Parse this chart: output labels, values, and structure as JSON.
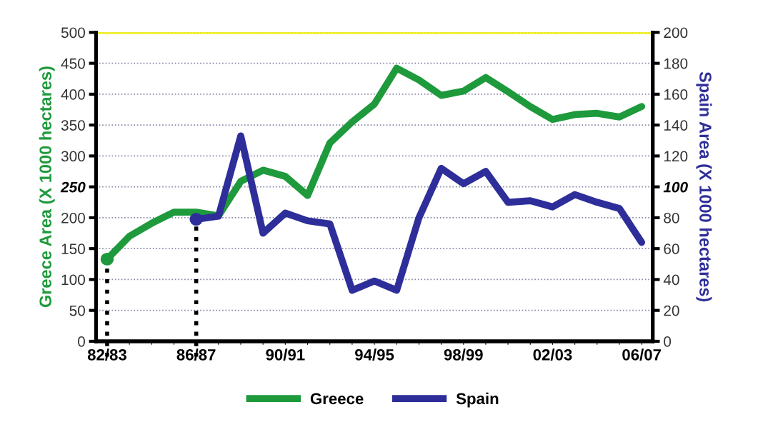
{
  "chart_data": {
    "type": "line",
    "categories": [
      "82/83",
      null,
      null,
      null,
      "86/87",
      null,
      null,
      null,
      "90/91",
      null,
      null,
      null,
      "94/95",
      null,
      null,
      null,
      "98/99",
      null,
      null,
      null,
      "02/03",
      null,
      null,
      null,
      "06/07"
    ],
    "series": [
      {
        "name": "Greece",
        "color": "#1e9a3c",
        "values": [
          133,
          170,
          191,
          209,
          209,
          203,
          259,
          277,
          267,
          236,
          321,
          355,
          384,
          442,
          423,
          398,
          405,
          427,
          404,
          380,
          359,
          367,
          369,
          363,
          380
        ]
      },
      {
        "name": "Spain",
        "color": "#2e2e9a",
        "axis": "y2",
        "values": [
          null,
          null,
          null,
          null,
          79,
          81,
          133,
          70,
          83,
          78,
          76,
          33,
          39,
          33,
          80,
          112,
          102,
          110,
          90,
          91,
          87,
          95,
          90,
          86,
          64
        ]
      }
    ],
    "ylabel": "Greece Area (X 1000 hectares)",
    "y2label": "Spain Area (X 1000 hectares)",
    "ylim": [
      0,
      500
    ],
    "yticks": [
      0,
      50,
      100,
      150,
      200,
      {
        "value": 250,
        "label": "250"
      },
      300,
      350,
      400,
      450,
      500
    ],
    "y2lim": [
      0,
      200
    ],
    "y2ticks": [
      0,
      20,
      40,
      60,
      80,
      {
        "value": 100,
        "label": "100"
      },
      120,
      140,
      160,
      180,
      200
    ],
    "ref_lines": [
      {
        "axis": "x",
        "value": "82/83",
        "color": "#000000",
        "line_style": "dotted"
      },
      {
        "axis": "x",
        "value": "86/87",
        "color": "#000000",
        "line_style": "dotted"
      },
      {
        "axis": "y",
        "value": 500,
        "color": "#f0f000",
        "line_style": "solid"
      }
    ],
    "grid": "y",
    "legend": "bottom",
    "line_style": "solid"
  }
}
